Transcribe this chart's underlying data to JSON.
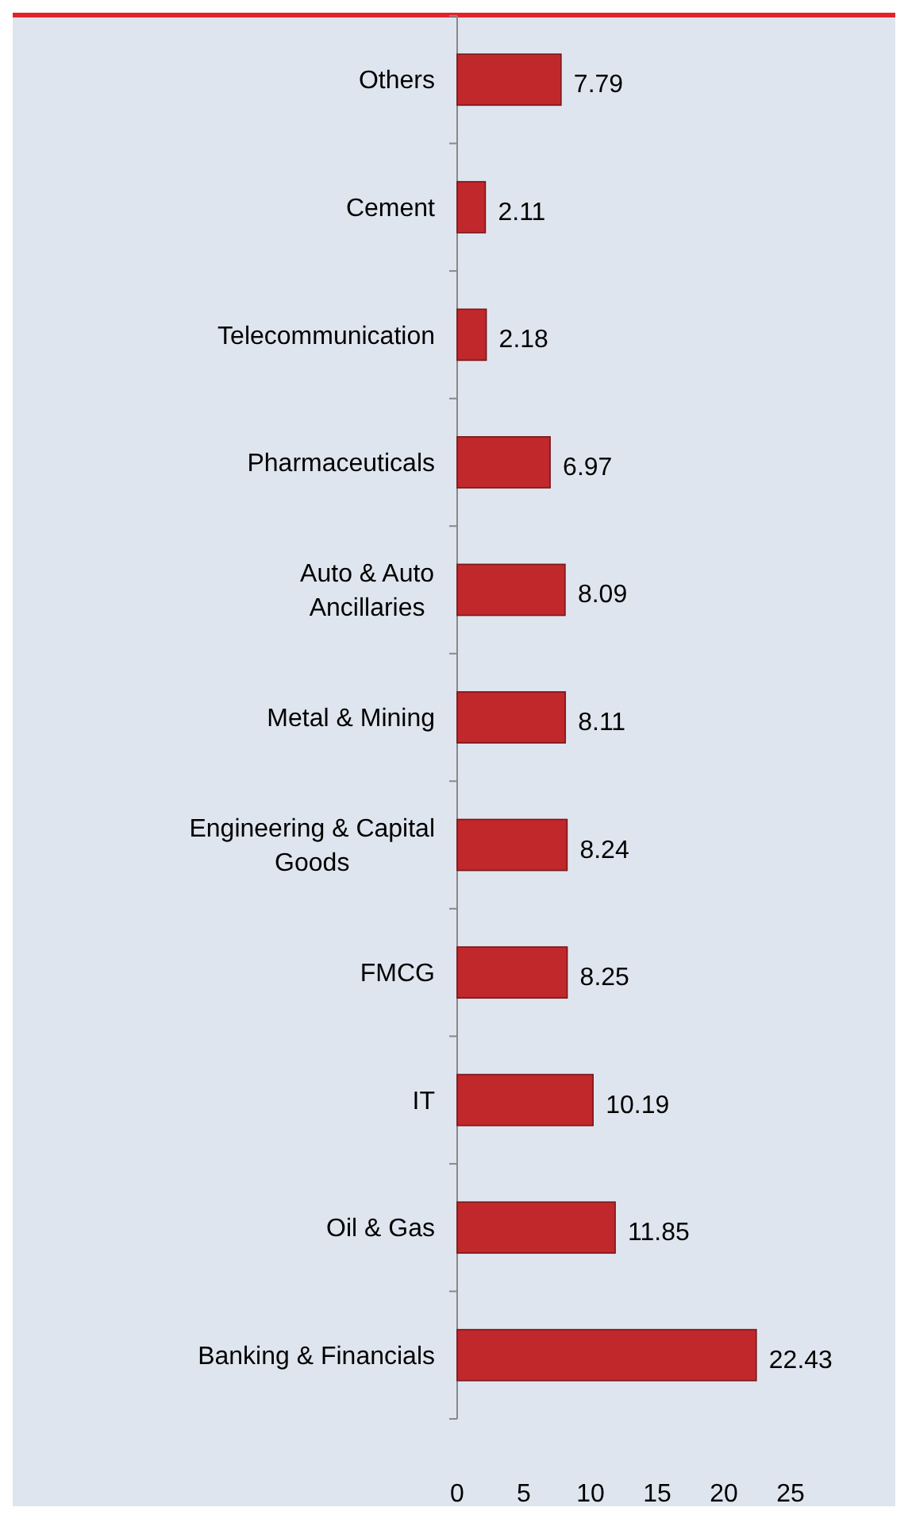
{
  "chart_data": {
    "type": "bar",
    "orientation": "horizontal",
    "categories": [
      "Others",
      "Cement",
      "Telecommunication",
      "Pharmaceuticals",
      "Auto & Auto Ancillaries",
      "Metal & Mining",
      "Engineering & Capital Goods",
      "FMCG",
      "IT",
      "Oil & Gas",
      "Banking & Financials"
    ],
    "values": [
      7.79,
      2.11,
      2.18,
      6.97,
      8.09,
      8.11,
      8.24,
      8.25,
      10.19,
      11.85,
      22.43
    ],
    "color": "#c0282c",
    "data_labels": true,
    "xlim": [
      0,
      25
    ],
    "xticks": [
      0,
      5,
      10,
      15,
      20,
      25
    ],
    "grid": false
  }
}
